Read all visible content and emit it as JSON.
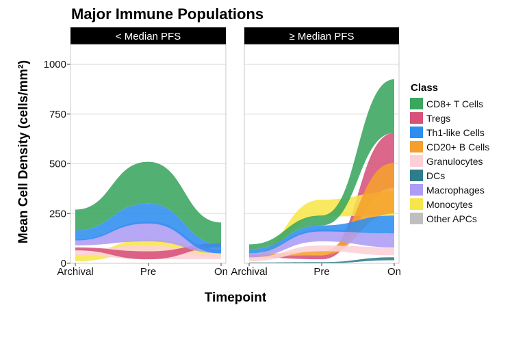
{
  "chart_data": {
    "type": "area",
    "title": "Major Immune Populations",
    "xlabel": "Timepoint",
    "ylabel": "Mean Cell Density (cells/mm²)",
    "ylim": [
      0,
      1100
    ],
    "yticks": [
      0,
      250,
      500,
      750,
      1000
    ],
    "categories": [
      "Archival",
      "Pre",
      "On"
    ],
    "grid": true,
    "legend": {
      "title": "Class",
      "position": "right"
    },
    "series": [
      {
        "name": "CD8+ T Cells",
        "color": "#3aa65e"
      },
      {
        "name": "Tregs",
        "color": "#d6527a"
      },
      {
        "name": "Th1-like Cells",
        "color": "#2e8ef0"
      },
      {
        "name": "CD20+ B Cells",
        "color": "#f5a02e"
      },
      {
        "name": "Granulocytes",
        "color": "#fcd0d6"
      },
      {
        "name": "DCs",
        "color": "#2f7c8c"
      },
      {
        "name": "Macrophages",
        "color": "#ad9cf5"
      },
      {
        "name": "Monocytes",
        "color": "#f7e64a"
      },
      {
        "name": "Other APCs",
        "color": "#bfbfbf"
      }
    ],
    "panels": [
      {
        "label": "< Median PFS",
        "layers": [
          {
            "name": "Monocytes",
            "values": [
              [
                10,
                45
              ],
              [
                55,
                120
              ],
              [
                35,
                70
              ]
            ]
          },
          {
            "name": "Granulocytes",
            "values": [
              [
                40,
                70
              ],
              [
                20,
                90
              ],
              [
                20,
                45
              ]
            ]
          },
          {
            "name": "Tregs",
            "values": [
              [
                65,
                80
              ],
              [
                20,
                60
              ],
              [
                80,
                100
              ]
            ]
          },
          {
            "name": "Macrophages",
            "values": [
              [
                90,
                120
              ],
              [
                110,
                210
              ],
              [
                50,
                70
              ]
            ]
          },
          {
            "name": "Th1-like Cells",
            "values": [
              [
                115,
                165
              ],
              [
                200,
                300
              ],
              [
                50,
                95
              ]
            ]
          },
          {
            "name": "CD8+ T Cells",
            "values": [
              [
                165,
                270
              ],
              [
                300,
                510
              ],
              [
                95,
                205
              ]
            ]
          }
        ]
      },
      {
        "label": "≥ Median PFS",
        "layers": [
          {
            "name": "Tregs",
            "values": [
              [
                30,
                40
              ],
              [
                20,
                40
              ],
              [
                380,
                655
              ]
            ]
          },
          {
            "name": "Monocytes",
            "values": [
              [
                20,
                40
              ],
              [
                235,
                320
              ],
              [
                240,
                360
              ]
            ]
          },
          {
            "name": "CD20+ B Cells",
            "values": [
              [
                30,
                45
              ],
              [
                40,
                60
              ],
              [
                250,
                505
              ]
            ]
          },
          {
            "name": "Granulocytes",
            "values": [
              [
                10,
                30
              ],
              [
                60,
                90
              ],
              [
                40,
                80
              ]
            ]
          },
          {
            "name": "Macrophages",
            "values": [
              [
                30,
                50
              ],
              [
                110,
                170
              ],
              [
                80,
                150
              ]
            ]
          },
          {
            "name": "Th1-like Cells",
            "values": [
              [
                50,
                70
              ],
              [
                160,
                190
              ],
              [
                150,
                240
              ]
            ]
          },
          {
            "name": "DCs",
            "values": [
              [
                0,
                4
              ],
              [
                0,
                6
              ],
              [
                15,
                30
              ]
            ]
          },
          {
            "name": "CD8+ T Cells",
            "values": [
              [
                70,
                95
              ],
              [
                190,
                240
              ],
              [
                655,
                925
              ]
            ]
          }
        ]
      }
    ]
  }
}
